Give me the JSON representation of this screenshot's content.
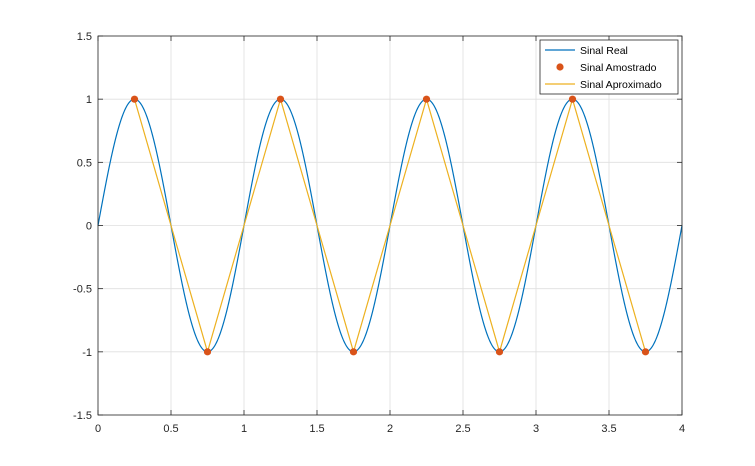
{
  "chart_data": {
    "type": "line",
    "title": "",
    "xlabel": "",
    "ylabel": "",
    "xlim": [
      0,
      4
    ],
    "ylim": [
      -1.5,
      1.5
    ],
    "xticks": [
      0,
      0.5,
      1,
      1.5,
      2,
      2.5,
      3,
      3.5,
      4
    ],
    "xtick_labels": [
      "0",
      "0.5",
      "1",
      "1.5",
      "2",
      "2.5",
      "3",
      "3.5",
      "4"
    ],
    "yticks": [
      -1.5,
      -1,
      -0.5,
      0,
      0.5,
      1,
      1.5
    ],
    "ytick_labels": [
      "-1.5",
      "-1",
      "-0.5",
      "0",
      "0.5",
      "1",
      "1.5"
    ],
    "grid": true,
    "legend_position": "top-right",
    "series": [
      {
        "name": "Sinal Real",
        "style": "line",
        "color": "#0072BD",
        "function": "sin(2*pi*x)",
        "x_range": [
          0,
          4
        ]
      },
      {
        "name": "Sinal Amostrado",
        "style": "markers",
        "color": "#D95319",
        "x": [
          0.25,
          0.75,
          1.25,
          1.75,
          2.25,
          2.75,
          3.25,
          3.75
        ],
        "y": [
          1,
          -1,
          1,
          -1,
          1,
          -1,
          1,
          -1
        ]
      },
      {
        "name": "Sinal Aproximado",
        "style": "line",
        "color": "#EDB120",
        "x": [
          0.25,
          0.75,
          1.25,
          1.75,
          2.25,
          2.75,
          3.25,
          3.75
        ],
        "y": [
          1,
          -1,
          1,
          -1,
          1,
          -1,
          1,
          -1
        ]
      }
    ]
  }
}
